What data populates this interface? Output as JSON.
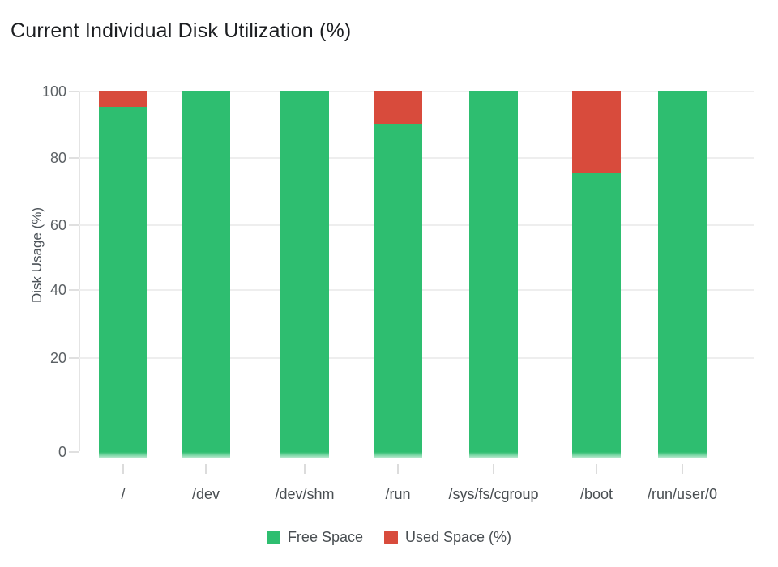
{
  "title": "Current Individual Disk Utilization (%)",
  "chart_data": {
    "type": "bar",
    "stacked": true,
    "title": "Current Individual Disk Utilization (%)",
    "xlabel": "",
    "ylabel": "Disk Usage (%)",
    "categories": [
      "/",
      "/dev",
      "/dev/shm",
      "/run",
      "/sys/fs/cgroup",
      "/boot",
      "/run/user/0"
    ],
    "series": [
      {
        "name": "Free Space",
        "color": "#2ebe70",
        "values": [
          95,
          100,
          100,
          90,
          100,
          75,
          100
        ]
      },
      {
        "name": "Used Space (%)",
        "color": "#d84b3c",
        "values": [
          5,
          0,
          0,
          10,
          0,
          25,
          0
        ]
      }
    ],
    "yticks": [
      "100",
      "80",
      "60",
      "40",
      "20",
      "0"
    ],
    "ylim": [
      0,
      100
    ],
    "grid": true,
    "legend_position": "bottom"
  }
}
